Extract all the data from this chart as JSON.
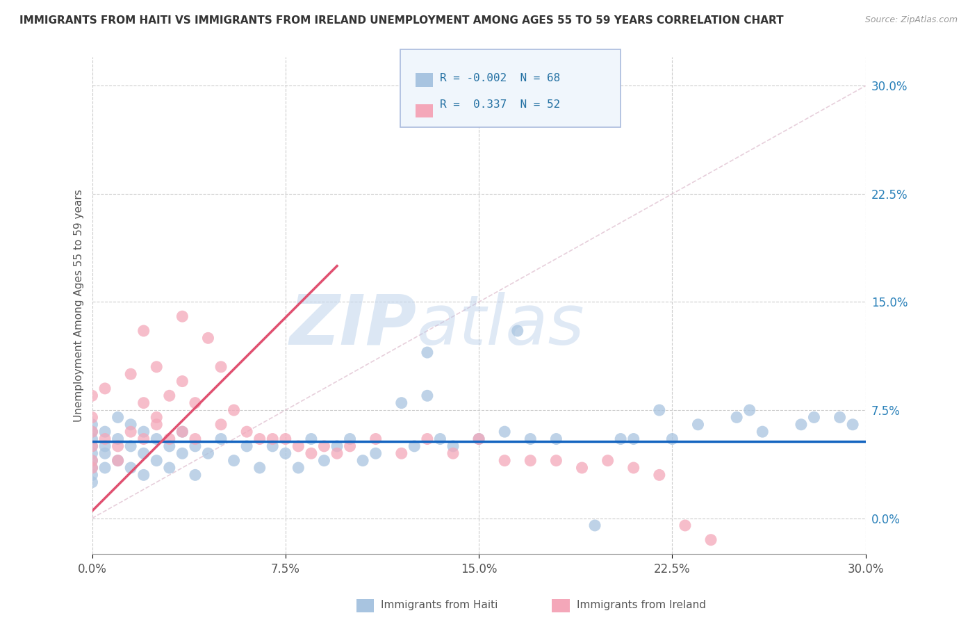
{
  "title": "IMMIGRANTS FROM HAITI VS IMMIGRANTS FROM IRELAND UNEMPLOYMENT AMONG AGES 55 TO 59 YEARS CORRELATION CHART",
  "source": "Source: ZipAtlas.com",
  "ylabel": "Unemployment Among Ages 55 to 59 years",
  "xlim": [
    0.0,
    30.0
  ],
  "ylim": [
    -2.5,
    32.0
  ],
  "haiti_color": "#a8c4e0",
  "ireland_color": "#f4a7b9",
  "haiti_line_color": "#1565c0",
  "ireland_line_color": "#e05070",
  "diagonal_color": "#cccccc",
  "haiti_R": "-0.002",
  "haiti_N": "68",
  "ireland_R": "0.337",
  "ireland_N": "52",
  "haiti_scatter_x": [
    0.0,
    0.0,
    0.0,
    0.0,
    0.0,
    0.0,
    0.0,
    0.0,
    0.0,
    0.5,
    0.5,
    0.5,
    0.5,
    1.0,
    1.0,
    1.0,
    1.5,
    1.5,
    1.5,
    2.0,
    2.0,
    2.0,
    2.5,
    2.5,
    3.0,
    3.0,
    3.5,
    3.5,
    4.0,
    4.0,
    4.5,
    5.0,
    5.5,
    6.0,
    6.5,
    7.0,
    7.5,
    8.0,
    8.5,
    9.0,
    9.5,
    10.0,
    10.5,
    11.0,
    12.0,
    12.5,
    13.0,
    13.5,
    14.0,
    15.0,
    16.0,
    17.0,
    18.0,
    19.5,
    20.5,
    21.0,
    22.0,
    22.5,
    23.5,
    25.0,
    25.5,
    26.0,
    27.5,
    28.0,
    29.0,
    29.5,
    13.0,
    16.5
  ],
  "haiti_scatter_y": [
    5.0,
    4.5,
    4.0,
    3.5,
    5.5,
    6.0,
    3.0,
    2.5,
    6.5,
    5.0,
    4.5,
    6.0,
    3.5,
    5.5,
    4.0,
    7.0,
    5.0,
    3.5,
    6.5,
    4.5,
    6.0,
    3.0,
    5.5,
    4.0,
    5.0,
    3.5,
    6.0,
    4.5,
    5.0,
    3.0,
    4.5,
    5.5,
    4.0,
    5.0,
    3.5,
    5.0,
    4.5,
    3.5,
    5.5,
    4.0,
    5.0,
    5.5,
    4.0,
    4.5,
    8.0,
    5.0,
    8.5,
    5.5,
    5.0,
    5.5,
    6.0,
    5.5,
    5.5,
    -0.5,
    5.5,
    5.5,
    7.5,
    5.5,
    6.5,
    7.0,
    7.5,
    6.0,
    6.5,
    7.0,
    7.0,
    6.5,
    11.5,
    13.0
  ],
  "ireland_scatter_x": [
    0.0,
    0.0,
    0.0,
    0.0,
    0.0,
    0.0,
    0.5,
    0.5,
    1.0,
    1.0,
    1.5,
    1.5,
    2.0,
    2.0,
    2.0,
    2.5,
    2.5,
    2.5,
    3.0,
    3.0,
    3.5,
    3.5,
    3.5,
    4.0,
    4.0,
    4.5,
    5.0,
    5.0,
    5.5,
    6.0,
    6.5,
    7.0,
    7.5,
    8.0,
    8.5,
    9.0,
    9.5,
    10.0,
    11.0,
    12.0,
    13.0,
    14.0,
    15.0,
    16.0,
    17.0,
    18.0,
    19.0,
    20.0,
    21.0,
    22.0,
    23.0,
    24.0
  ],
  "ireland_scatter_y": [
    5.0,
    4.0,
    6.0,
    3.5,
    7.0,
    8.5,
    5.5,
    9.0,
    5.0,
    4.0,
    6.0,
    10.0,
    5.5,
    8.0,
    13.0,
    7.0,
    6.5,
    10.5,
    5.5,
    8.5,
    6.0,
    9.5,
    14.0,
    5.5,
    8.0,
    12.5,
    6.5,
    10.5,
    7.5,
    6.0,
    5.5,
    5.5,
    5.5,
    5.0,
    4.5,
    5.0,
    4.5,
    5.0,
    5.5,
    4.5,
    5.5,
    4.5,
    5.5,
    4.0,
    4.0,
    4.0,
    3.5,
    4.0,
    3.5,
    3.0,
    -0.5,
    -1.5
  ],
  "ireland_line_x0": 0.0,
  "ireland_line_y0": 0.5,
  "ireland_line_x1": 9.5,
  "ireland_line_y1": 17.5,
  "haiti_line_y": 5.2,
  "watermark_zip": "ZIP",
  "watermark_atlas": "atlas",
  "background_color": "#ffffff",
  "grid_color": "#cccccc",
  "ytick_positions": [
    0.0,
    7.5,
    15.0,
    22.5,
    30.0
  ],
  "xtick_positions": [
    0.0,
    7.5,
    15.0,
    22.5,
    30.0
  ]
}
